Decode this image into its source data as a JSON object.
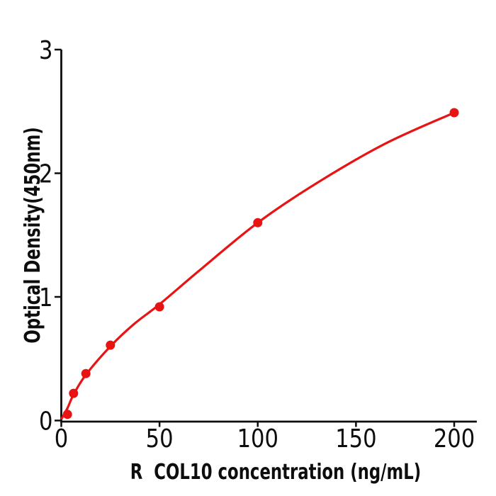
{
  "figure": {
    "background": "#ffffff"
  },
  "chart_data": {
    "type": "scatter",
    "title": "",
    "xlabel": "R  COL10 concentration (ng/mL)",
    "ylabel": "Optical Density(450nm)",
    "x_ticks": [
      0,
      50,
      100,
      150,
      200
    ],
    "y_ticks": [
      0,
      1,
      2,
      3
    ],
    "xlim": [
      0,
      211.5
    ],
    "ylim": [
      0,
      3
    ],
    "grid": false,
    "legend": false,
    "marker": "circle",
    "point_color": "#e81313",
    "line_color": "#e81313",
    "axis_color": "#0d0d0d",
    "points": [
      {
        "x": 3.125,
        "y": 0.05
      },
      {
        "x": 6.25,
        "y": 0.22
      },
      {
        "x": 12.5,
        "y": 0.38
      },
      {
        "x": 25,
        "y": 0.61
      },
      {
        "x": 50,
        "y": 0.92
      },
      {
        "x": 100,
        "y": 1.6
      },
      {
        "x": 200,
        "y": 2.49
      }
    ],
    "fit_curve": [
      {
        "x": 0,
        "y": 0.01
      },
      {
        "x": 3.125,
        "y": 0.1
      },
      {
        "x": 6.25,
        "y": 0.21
      },
      {
        "x": 12.5,
        "y": 0.37
      },
      {
        "x": 25,
        "y": 0.6
      },
      {
        "x": 37,
        "y": 0.78
      },
      {
        "x": 50,
        "y": 0.94
      },
      {
        "x": 70,
        "y": 1.21
      },
      {
        "x": 100,
        "y": 1.6
      },
      {
        "x": 130,
        "y": 1.92
      },
      {
        "x": 165,
        "y": 2.24
      },
      {
        "x": 200,
        "y": 2.49
      }
    ]
  }
}
